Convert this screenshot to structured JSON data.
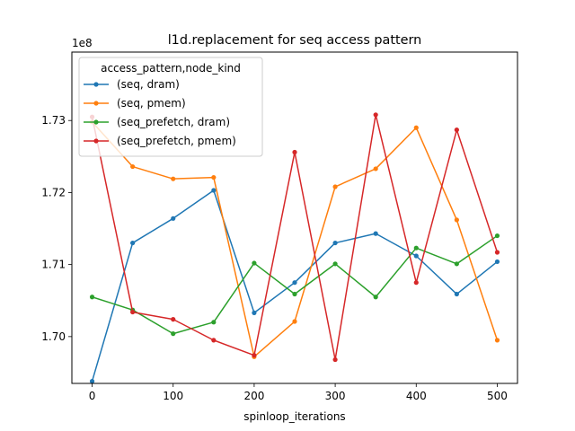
{
  "chart_data": {
    "type": "line",
    "title": "l1d.replacement for seq access pattern",
    "xlabel": "spinloop_iterations",
    "ylabel": "",
    "y_offset_label": "1e8",
    "y_scale_factor": 100000000,
    "xlim": [
      -25,
      525
    ],
    "ylim": [
      169.35,
      173.95
    ],
    "x_ticks": [
      0,
      100,
      200,
      300,
      400,
      500
    ],
    "y_ticks": [
      1.7,
      1.71,
      1.72,
      1.73
    ],
    "y_tick_labels": [
      "1.70",
      "1.71",
      "1.72",
      "1.73"
    ],
    "grid": false,
    "legend": {
      "title": "access_pattern,node_kind",
      "placement": "top-left"
    },
    "x": [
      0,
      50,
      100,
      150,
      200,
      250,
      300,
      350,
      400,
      450,
      500
    ],
    "series": [
      {
        "name": "(seq, dram)",
        "color": "#1f77b4",
        "values": [
          169.38,
          171.3,
          171.64,
          172.03,
          170.33,
          170.75,
          171.3,
          171.43,
          171.12,
          170.59,
          171.04
        ]
      },
      {
        "name": "(seq, pmem)",
        "color": "#ff7f0e",
        "values": [
          172.98,
          172.36,
          172.19,
          172.21,
          169.72,
          170.21,
          172.08,
          172.33,
          172.9,
          171.62,
          169.95
        ]
      },
      {
        "name": "(seq_prefetch, dram)",
        "color": "#2ca02c",
        "values": [
          170.55,
          170.37,
          170.04,
          170.2,
          171.02,
          170.59,
          171.01,
          170.55,
          171.23,
          171.01,
          171.4
        ]
      },
      {
        "name": "(seq_prefetch, pmem)",
        "color": "#d62728",
        "values": [
          173.05,
          170.34,
          170.24,
          169.95,
          169.74,
          172.56,
          169.68,
          173.08,
          170.75,
          172.87,
          171.17
        ]
      }
    ]
  }
}
